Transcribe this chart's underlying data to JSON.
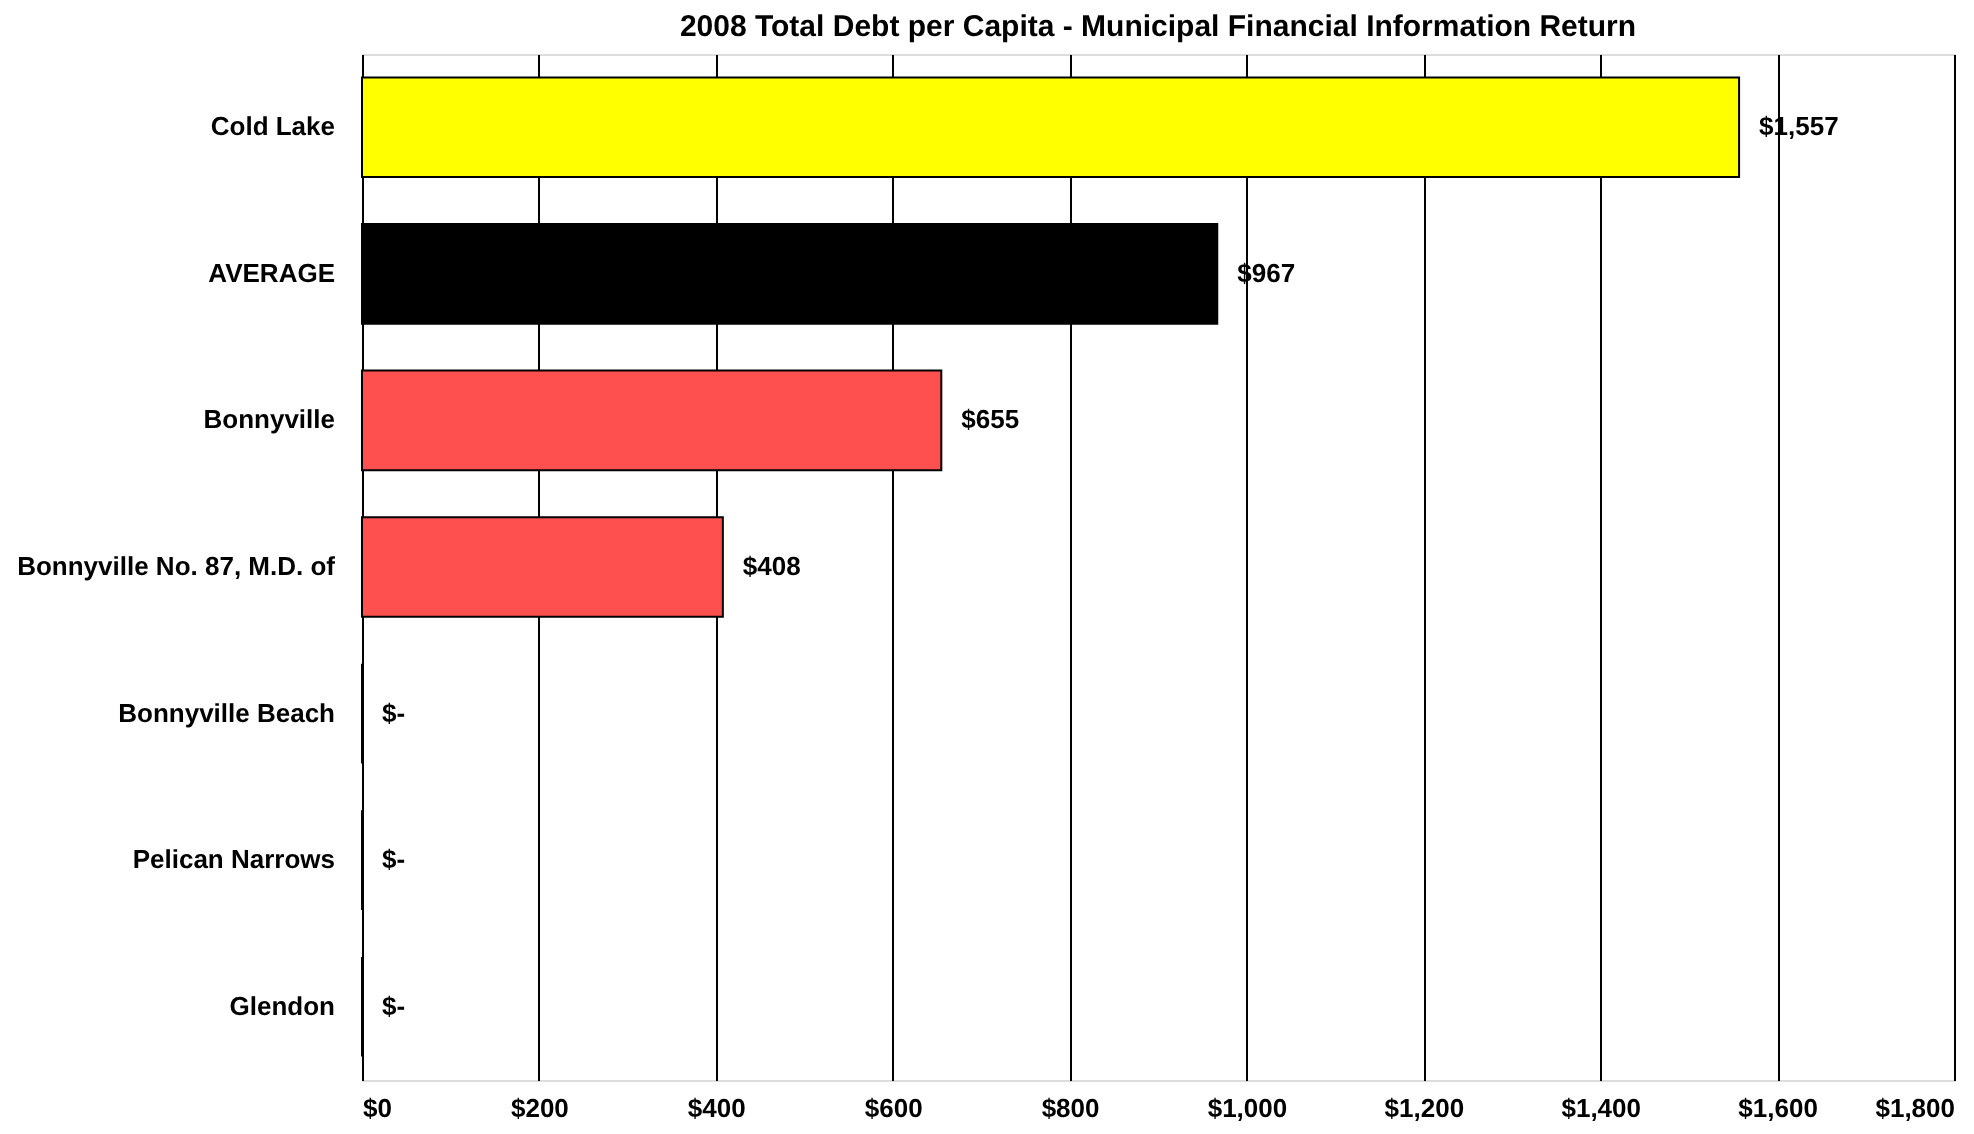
{
  "chart_data": {
    "type": "bar",
    "orientation": "horizontal",
    "title": "2008 Total Debt per Capita - Municipal Financial Information Return",
    "categories": [
      "Cold Lake",
      "AVERAGE",
      "Bonnyville",
      "Bonnyville No. 87, M.D. of",
      "Bonnyville Beach",
      "Pelican Narrows",
      "Glendon"
    ],
    "values": [
      1557,
      967,
      655,
      408,
      0,
      0,
      0
    ],
    "colors": [
      "#ffff00",
      "#000000",
      "#ff5050",
      "#ff5050",
      "#ff5050",
      "#ff5050",
      "#ff5050"
    ],
    "value_labels": [
      "$1,557",
      "$967",
      "$655",
      "$408",
      "$-",
      "$-",
      "$-"
    ],
    "xlim": [
      0,
      1800
    ],
    "xticks": [
      {
        "value": 0,
        "label": "$0"
      },
      {
        "value": 200,
        "label": "$200"
      },
      {
        "value": 400,
        "label": "$400"
      },
      {
        "value": 600,
        "label": "$600"
      },
      {
        "value": 800,
        "label": "$800"
      },
      {
        "value": 1000,
        "label": "$1,000"
      },
      {
        "value": 1200,
        "label": "$1,200"
      },
      {
        "value": 1400,
        "label": "$1,400"
      },
      {
        "value": 1600,
        "label": "$1,600"
      },
      {
        "value": 1800,
        "label": "$1,800"
      }
    ],
    "grid": "x"
  }
}
